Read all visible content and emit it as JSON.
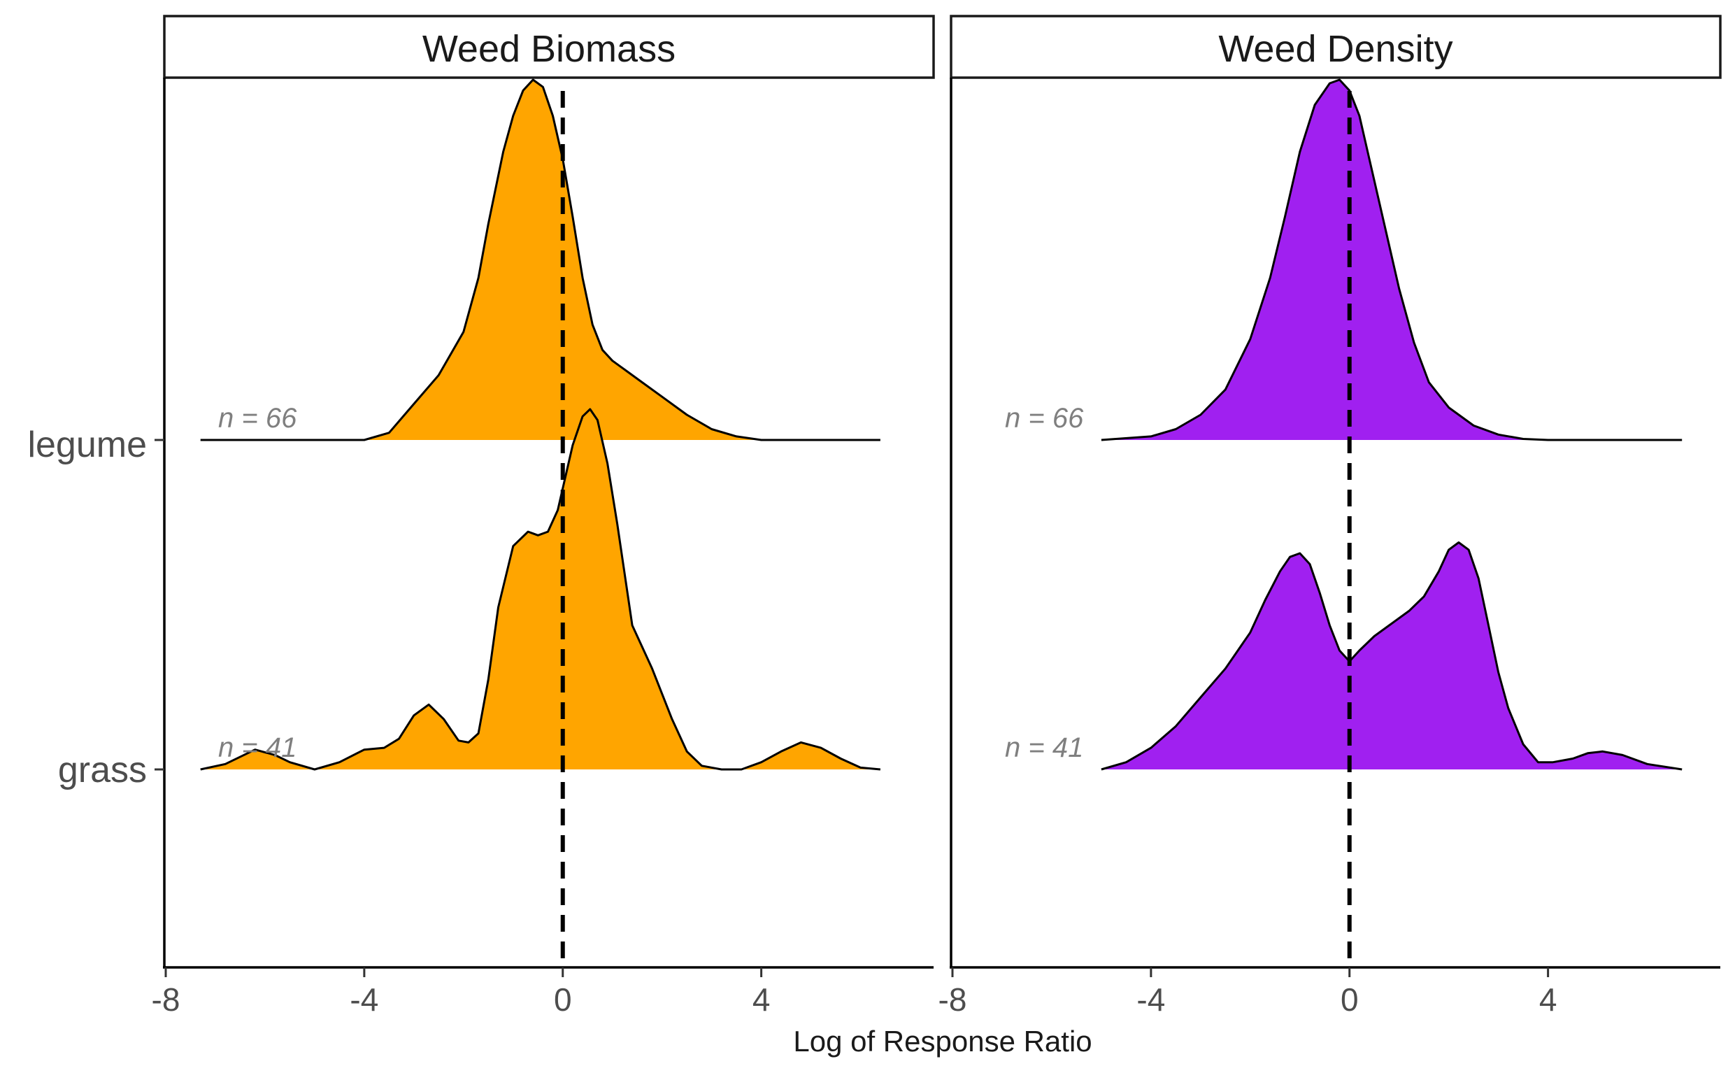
{
  "chart_data": {
    "type": "ridgeline",
    "xlabel": "Log of Response Ratio",
    "ylabel": "",
    "xlim": [
      -8,
      7.5
    ],
    "xticks": [
      -8,
      -4,
      0,
      4
    ],
    "xtick_labels": [
      "-8",
      "-4",
      "0",
      "4"
    ],
    "categories": [
      "legume",
      "grass"
    ],
    "reference_line_x": 0,
    "panels": [
      {
        "name": "Weed Biomass",
        "color": "#FFA500",
        "series": [
          {
            "category": "legume",
            "n_label": "n = 66",
            "x": [
              -7.3,
              -4.0,
              -3.5,
              -3.0,
              -2.5,
              -2.0,
              -1.7,
              -1.5,
              -1.2,
              -1.0,
              -0.8,
              -0.6,
              -0.4,
              -0.2,
              0.0,
              0.2,
              0.4,
              0.6,
              0.8,
              1.0,
              1.3,
              1.6,
              2.0,
              2.5,
              3.0,
              3.5,
              4.0,
              6.4
            ],
            "y": [
              0.0,
              0.0,
              0.02,
              0.1,
              0.18,
              0.3,
              0.45,
              0.6,
              0.8,
              0.9,
              0.97,
              1.0,
              0.98,
              0.9,
              0.78,
              0.62,
              0.45,
              0.32,
              0.25,
              0.22,
              0.19,
              0.16,
              0.12,
              0.07,
              0.03,
              0.01,
              0.0,
              0.0
            ]
          },
          {
            "category": "grass",
            "n_label": "n = 41",
            "x": [
              -7.3,
              -6.8,
              -6.2,
              -5.8,
              -5.5,
              -5.0,
              -4.5,
              -4.0,
              -3.6,
              -3.3,
              -3.0,
              -2.7,
              -2.4,
              -2.1,
              -1.9,
              -1.7,
              -1.5,
              -1.3,
              -1.0,
              -0.7,
              -0.5,
              -0.3,
              -0.1,
              0.0,
              0.2,
              0.4,
              0.55,
              0.7,
              0.9,
              1.1,
              1.4,
              1.8,
              2.2,
              2.5,
              2.8,
              3.2,
              3.6,
              4.0,
              4.4,
              4.8,
              5.2,
              5.6,
              6.0,
              6.4
            ],
            "y": [
              0.0,
              0.015,
              0.055,
              0.04,
              0.02,
              0.0,
              0.02,
              0.055,
              0.06,
              0.085,
              0.15,
              0.18,
              0.14,
              0.08,
              0.075,
              0.1,
              0.25,
              0.45,
              0.62,
              0.66,
              0.65,
              0.66,
              0.72,
              0.78,
              0.9,
              0.98,
              1.0,
              0.97,
              0.85,
              0.68,
              0.4,
              0.28,
              0.14,
              0.05,
              0.01,
              0.0,
              0.0,
              0.02,
              0.05,
              0.075,
              0.06,
              0.03,
              0.005,
              0.0
            ]
          }
        ]
      },
      {
        "name": "Weed Density",
        "color": "#A020F0",
        "series": [
          {
            "category": "legume",
            "n_label": "n = 66",
            "x": [
              -5.0,
              -4.0,
              -3.5,
              -3.0,
              -2.5,
              -2.0,
              -1.6,
              -1.3,
              -1.0,
              -0.7,
              -0.4,
              -0.2,
              0.0,
              0.2,
              0.4,
              0.7,
              1.0,
              1.3,
              1.6,
              2.0,
              2.5,
              3.0,
              3.5,
              4.0,
              6.7
            ],
            "y": [
              0.0,
              0.01,
              0.03,
              0.07,
              0.14,
              0.28,
              0.45,
              0.62,
              0.8,
              0.93,
              0.99,
              1.0,
              0.97,
              0.9,
              0.78,
              0.6,
              0.42,
              0.27,
              0.16,
              0.09,
              0.04,
              0.015,
              0.003,
              0.0,
              0.0
            ]
          },
          {
            "category": "grass",
            "n_label": "n = 41",
            "x": [
              -5.0,
              -4.5,
              -4.0,
              -3.5,
              -3.0,
              -2.5,
              -2.0,
              -1.7,
              -1.4,
              -1.2,
              -1.0,
              -0.8,
              -0.6,
              -0.4,
              -0.2,
              0.0,
              0.2,
              0.5,
              0.8,
              1.2,
              1.5,
              1.8,
              2.0,
              2.2,
              2.4,
              2.6,
              2.8,
              3.0,
              3.2,
              3.5,
              3.8,
              4.1,
              4.5,
              4.8,
              5.1,
              5.5,
              6.0,
              6.7
            ],
            "y": [
              0.0,
              0.02,
              0.06,
              0.12,
              0.2,
              0.28,
              0.38,
              0.47,
              0.55,
              0.59,
              0.6,
              0.57,
              0.49,
              0.4,
              0.33,
              0.3,
              0.33,
              0.37,
              0.4,
              0.44,
              0.48,
              0.55,
              0.61,
              0.63,
              0.61,
              0.53,
              0.4,
              0.27,
              0.17,
              0.07,
              0.02,
              0.02,
              0.03,
              0.045,
              0.05,
              0.04,
              0.015,
              0.0
            ]
          }
        ]
      }
    ]
  }
}
